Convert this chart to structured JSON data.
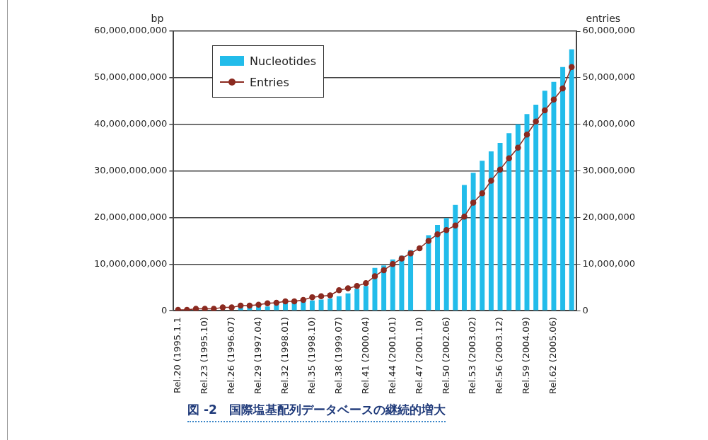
{
  "chart_data": {
    "type": "bar",
    "categories": [
      "Rel.20 (1995.1.1",
      null,
      null,
      "Rel.23 (1995.10)",
      null,
      null,
      "Rel.26 (1996.07)",
      null,
      null,
      "Rel.29 (1997.04)",
      null,
      null,
      "Rel.32 (1998.01)",
      null,
      null,
      "Rel.35 (1998.10)",
      null,
      null,
      "Rel.38 (1999.07)",
      null,
      null,
      "Rel.41 (2000.04)",
      null,
      null,
      "Rel.44 (2001.01)",
      null,
      null,
      "Rel.47 (2001.10)",
      null,
      null,
      "Rel.50 (2002.06)",
      null,
      null,
      "Rel.53 (2003.02)",
      null,
      null,
      "Rel.56 (2003.12)",
      null,
      null,
      "Rel.59 (2004.09)",
      null,
      null,
      "Rel.62 (2005.06)",
      null,
      null
    ],
    "series": [
      {
        "name": "Nucleotides",
        "color": "#22bcea",
        "values": [
          null,
          null,
          null,
          null,
          null,
          null,
          null,
          700000000,
          800000000,
          800000000,
          900000000,
          1300000000,
          1600000000,
          1900000000,
          2000000000,
          2200000000,
          2400000000,
          2600000000,
          3100000000,
          3700000000,
          4700000000,
          5300000000,
          9200000000,
          9700000000,
          11000000000,
          11800000000,
          13000000000,
          null,
          16200000000,
          18400000000,
          19900000000,
          22700000000,
          27000000000,
          29600000000,
          32200000000,
          34200000000,
          36000000000,
          38100000000,
          40000000000,
          42200000000,
          44200000000,
          47200000000,
          49100000000,
          52300000000,
          56100000000
        ]
      },
      {
        "name": "Entries",
        "type": "line",
        "axis": "y2",
        "color": "#8b2a20",
        "values": [
          200000,
          200000,
          400000,
          400000,
          400000,
          700000,
          700000,
          1100000,
          1100000,
          1300000,
          1600000,
          1700000,
          2000000,
          2000000,
          2300000,
          2900000,
          3100000,
          3300000,
          4400000,
          4800000,
          5300000,
          5900000,
          7400000,
          8700000,
          10000000,
          11200000,
          12300000,
          13400000,
          15000000,
          16400000,
          17300000,
          18300000,
          20200000,
          23200000,
          25200000,
          27900000,
          30300000,
          32700000,
          35000000,
          37800000,
          40600000,
          43000000,
          45300000,
          47700000,
          52300000
        ]
      }
    ],
    "ylabel": "bp",
    "y2label": "entries",
    "ylim": [
      0,
      60000000000
    ],
    "yticks": [
      0,
      {
        "value": 10000000000,
        "label": "10,000,000,000"
      },
      {
        "value": 20000000000,
        "label": "20,000,000,000"
      },
      {
        "value": 30000000000,
        "label": "30,000,000,000"
      },
      {
        "value": 40000000000,
        "label": "40,000,000,000"
      },
      {
        "value": 50000000000,
        "label": "50,000,000,000"
      },
      {
        "value": 60000000000,
        "label": "60,000,000,000"
      }
    ],
    "y2lim": [
      0,
      60000000
    ],
    "y2ticks": [
      0,
      {
        "value": 10000000,
        "label": "10,000,000"
      },
      {
        "value": 20000000,
        "label": "20,000,000"
      },
      {
        "value": 30000000,
        "label": "30,000,000"
      },
      {
        "value": 40000000,
        "label": "40,000,000"
      },
      {
        "value": 50000000,
        "label": "50,000,000"
      },
      {
        "value": 60000000,
        "label": "60,000,000"
      }
    ],
    "grid": "y",
    "legend": "top left",
    "marker": "circle",
    "line_style": "solid",
    "annotations": [
      "図 -2　国際塩基配列データベースの継続的増大"
    ]
  }
}
